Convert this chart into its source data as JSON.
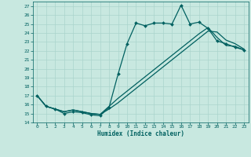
{
  "xlabel": "Humidex (Indice chaleur)",
  "bg_color": "#c8e8e0",
  "grid_color": "#b0d8d0",
  "line_color": "#006060",
  "xlim": [
    -0.5,
    23.5
  ],
  "ylim": [
    14,
    27.5
  ],
  "yticks": [
    14,
    15,
    16,
    17,
    18,
    19,
    20,
    21,
    22,
    23,
    24,
    25,
    26,
    27
  ],
  "xticks": [
    0,
    1,
    2,
    3,
    4,
    5,
    6,
    7,
    8,
    9,
    10,
    11,
    12,
    13,
    14,
    15,
    16,
    17,
    18,
    19,
    20,
    21,
    22,
    23
  ],
  "line1_x": [
    0,
    1,
    2,
    3,
    4,
    5,
    6,
    7,
    8,
    9,
    10,
    11,
    12,
    13,
    14,
    15,
    16,
    17,
    18,
    19,
    20,
    21,
    22,
    23
  ],
  "line1_y": [
    17.0,
    15.8,
    15.5,
    15.0,
    15.2,
    15.1,
    14.85,
    14.75,
    15.7,
    19.4,
    22.8,
    25.1,
    24.8,
    25.1,
    25.1,
    25.0,
    27.1,
    25.0,
    25.2,
    24.5,
    23.1,
    22.8,
    22.4,
    22.1
  ],
  "line2_x": [
    0,
    1,
    2,
    3,
    4,
    5,
    6,
    7,
    8,
    9,
    10,
    11,
    12,
    13,
    14,
    15,
    16,
    17,
    18,
    19,
    20,
    21,
    22,
    23
  ],
  "line2_y": [
    17.0,
    15.8,
    15.5,
    15.2,
    15.4,
    15.2,
    15.0,
    14.9,
    15.5,
    16.2,
    17.0,
    17.8,
    18.6,
    19.4,
    20.2,
    21.0,
    21.8,
    22.6,
    23.4,
    24.2,
    24.1,
    23.2,
    22.8,
    22.2
  ],
  "line3_x": [
    0,
    1,
    2,
    3,
    4,
    5,
    6,
    7,
    8,
    9,
    10,
    11,
    12,
    13,
    14,
    15,
    16,
    17,
    18,
    19,
    20,
    21,
    22,
    23
  ],
  "line3_y": [
    17.0,
    15.8,
    15.5,
    15.2,
    15.4,
    15.2,
    15.0,
    14.9,
    15.8,
    16.7,
    17.5,
    18.3,
    19.1,
    19.9,
    20.7,
    21.5,
    22.3,
    23.1,
    23.9,
    24.6,
    23.5,
    22.6,
    22.5,
    22.1
  ]
}
